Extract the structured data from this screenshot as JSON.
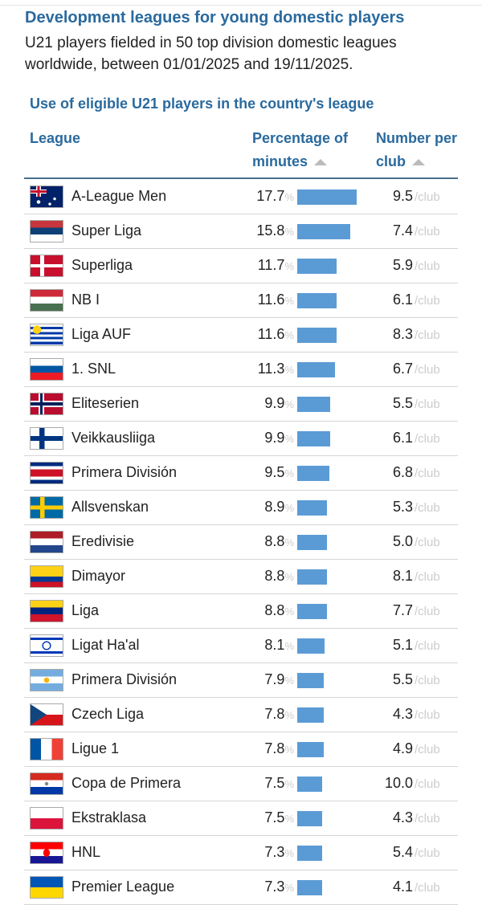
{
  "title": "Development leagues for young domestic players",
  "subtitle": "U21 players fielded in 50 top division domestic leagues worldwide, between 01/01/2025 and 19/11/2025.",
  "table_title": "Use of eligible U21 players in the country's league",
  "columns": {
    "league": "League",
    "pct": "Percentage of minutes",
    "num": "Number per club"
  },
  "pct_unit": "%",
  "num_unit": "/club",
  "bar_color": "#5b9bd5",
  "rows": [
    {
      "flag": "australia",
      "league": "A-League Men",
      "pct": "17.7",
      "num": "9.5"
    },
    {
      "flag": "serbia",
      "league": "Super Liga",
      "pct": "15.8",
      "num": "7.4"
    },
    {
      "flag": "denmark",
      "league": "Superliga",
      "pct": "11.7",
      "num": "5.9"
    },
    {
      "flag": "hungary",
      "league": "NB I",
      "pct": "11.6",
      "num": "6.1"
    },
    {
      "flag": "uruguay",
      "league": "Liga AUF",
      "pct": "11.6",
      "num": "8.3"
    },
    {
      "flag": "slovenia",
      "league": "1. SNL",
      "pct": "11.3",
      "num": "6.7"
    },
    {
      "flag": "norway",
      "league": "Eliteserien",
      "pct": "9.9",
      "num": "5.5"
    },
    {
      "flag": "finland",
      "league": "Veikkausliiga",
      "pct": "9.9",
      "num": "6.1"
    },
    {
      "flag": "costa-rica",
      "league": "Primera División",
      "pct": "9.5",
      "num": "6.8"
    },
    {
      "flag": "sweden",
      "league": "Allsvenskan",
      "pct": "8.9",
      "num": "5.3"
    },
    {
      "flag": "netherlands",
      "league": "Eredivisie",
      "pct": "8.8",
      "num": "5.0"
    },
    {
      "flag": "colombia",
      "league": "Dimayor",
      "pct": "8.8",
      "num": "8.1"
    },
    {
      "flag": "venezuela",
      "league": "Liga",
      "pct": "8.8",
      "num": "7.7"
    },
    {
      "flag": "israel",
      "league": "Ligat Ha'al",
      "pct": "8.1",
      "num": "5.1"
    },
    {
      "flag": "argentina",
      "league": "Primera División",
      "pct": "7.9",
      "num": "5.5"
    },
    {
      "flag": "czechia",
      "league": "Czech Liga",
      "pct": "7.8",
      "num": "4.3"
    },
    {
      "flag": "france",
      "league": "Ligue 1",
      "pct": "7.8",
      "num": "4.9"
    },
    {
      "flag": "paraguay",
      "league": "Copa de Primera",
      "pct": "7.5",
      "num": "10.0"
    },
    {
      "flag": "poland",
      "league": "Ekstraklasa",
      "pct": "7.5",
      "num": "4.3"
    },
    {
      "flag": "croatia",
      "league": "HNL",
      "pct": "7.3",
      "num": "5.4"
    },
    {
      "flag": "ukraine",
      "league": "Premier League",
      "pct": "7.3",
      "num": "4.1"
    }
  ]
}
